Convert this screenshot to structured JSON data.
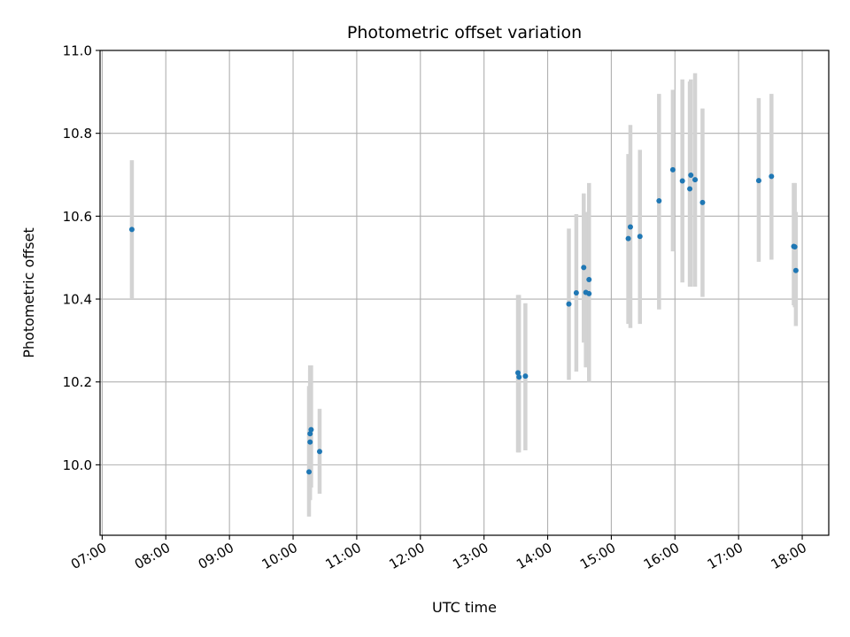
{
  "chart_data": {
    "type": "scatter",
    "title": "Photometric offset variation",
    "xlabel": "UTC time",
    "ylabel": "Photometric offset",
    "x_tick_labels": [
      "07:00",
      "08:00",
      "09:00",
      "10:00",
      "11:00",
      "12:00",
      "13:00",
      "14:00",
      "15:00",
      "16:00",
      "17:00",
      "18:00"
    ],
    "y_tick_labels": [
      "10.0",
      "10.2",
      "10.4",
      "10.6",
      "10.8",
      "11.0"
    ],
    "y_ticks": [
      10.0,
      10.2,
      10.4,
      10.6,
      10.8,
      11.0
    ],
    "xlim": [
      "06:58",
      "18:25"
    ],
    "ylim": [
      9.83,
      11.0
    ],
    "grid": true,
    "marker_color": "#1f77b4",
    "errorbar_color": "#d3d3d3",
    "points": [
      {
        "x": "07:28",
        "y": 10.568,
        "ylow": 10.4,
        "yhigh": 10.735
      },
      {
        "x": "10:15",
        "y": 9.983,
        "ylow": 9.875,
        "yhigh": 10.19
      },
      {
        "x": "10:16",
        "y": 10.055,
        "ylow": 9.915,
        "yhigh": 10.24
      },
      {
        "x": "10:16",
        "y": 10.075,
        "ylow": 9.935,
        "yhigh": 10.23
      },
      {
        "x": "10:17",
        "y": 10.085,
        "ylow": 9.945,
        "yhigh": 10.24
      },
      {
        "x": "10:25",
        "y": 10.032,
        "ylow": 9.93,
        "yhigh": 10.135
      },
      {
        "x": "13:32",
        "y": 10.222,
        "ylow": 10.03,
        "yhigh": 10.41
      },
      {
        "x": "13:33",
        "y": 10.212,
        "ylow": 10.03,
        "yhigh": 10.41
      },
      {
        "x": "13:39",
        "y": 10.214,
        "ylow": 10.035,
        "yhigh": 10.39
      },
      {
        "x": "14:20",
        "y": 10.388,
        "ylow": 10.205,
        "yhigh": 10.57
      },
      {
        "x": "14:27",
        "y": 10.415,
        "ylow": 10.225,
        "yhigh": 10.605
      },
      {
        "x": "14:34",
        "y": 10.476,
        "ylow": 10.295,
        "yhigh": 10.655
      },
      {
        "x": "14:36",
        "y": 10.416,
        "ylow": 10.235,
        "yhigh": 10.61
      },
      {
        "x": "14:39",
        "y": 10.447,
        "ylow": 10.21,
        "yhigh": 10.68
      },
      {
        "x": "14:39",
        "y": 10.413,
        "ylow": 10.2,
        "yhigh": 10.62
      },
      {
        "x": "15:16",
        "y": 10.546,
        "ylow": 10.34,
        "yhigh": 10.75
      },
      {
        "x": "15:18",
        "y": 10.574,
        "ylow": 10.33,
        "yhigh": 10.82
      },
      {
        "x": "15:27",
        "y": 10.551,
        "ylow": 10.34,
        "yhigh": 10.76
      },
      {
        "x": "15:45",
        "y": 10.637,
        "ylow": 10.375,
        "yhigh": 10.895
      },
      {
        "x": "15:58",
        "y": 10.712,
        "ylow": 10.515,
        "yhigh": 10.905
      },
      {
        "x": "16:07",
        "y": 10.685,
        "ylow": 10.44,
        "yhigh": 10.93
      },
      {
        "x": "16:14",
        "y": 10.666,
        "ylow": 10.43,
        "yhigh": 10.925
      },
      {
        "x": "16:15",
        "y": 10.699,
        "ylow": 10.43,
        "yhigh": 10.93
      },
      {
        "x": "16:19",
        "y": 10.688,
        "ylow": 10.43,
        "yhigh": 10.945
      },
      {
        "x": "16:26",
        "y": 10.633,
        "ylow": 10.405,
        "yhigh": 10.86
      },
      {
        "x": "17:19",
        "y": 10.686,
        "ylow": 10.49,
        "yhigh": 10.885
      },
      {
        "x": "17:31",
        "y": 10.696,
        "ylow": 10.495,
        "yhigh": 10.895
      },
      {
        "x": "17:52",
        "y": 10.527,
        "ylow": 10.385,
        "yhigh": 10.68
      },
      {
        "x": "17:53",
        "y": 10.526,
        "ylow": 10.38,
        "yhigh": 10.68
      },
      {
        "x": "17:54",
        "y": 10.469,
        "ylow": 10.335,
        "yhigh": 10.61
      }
    ]
  }
}
